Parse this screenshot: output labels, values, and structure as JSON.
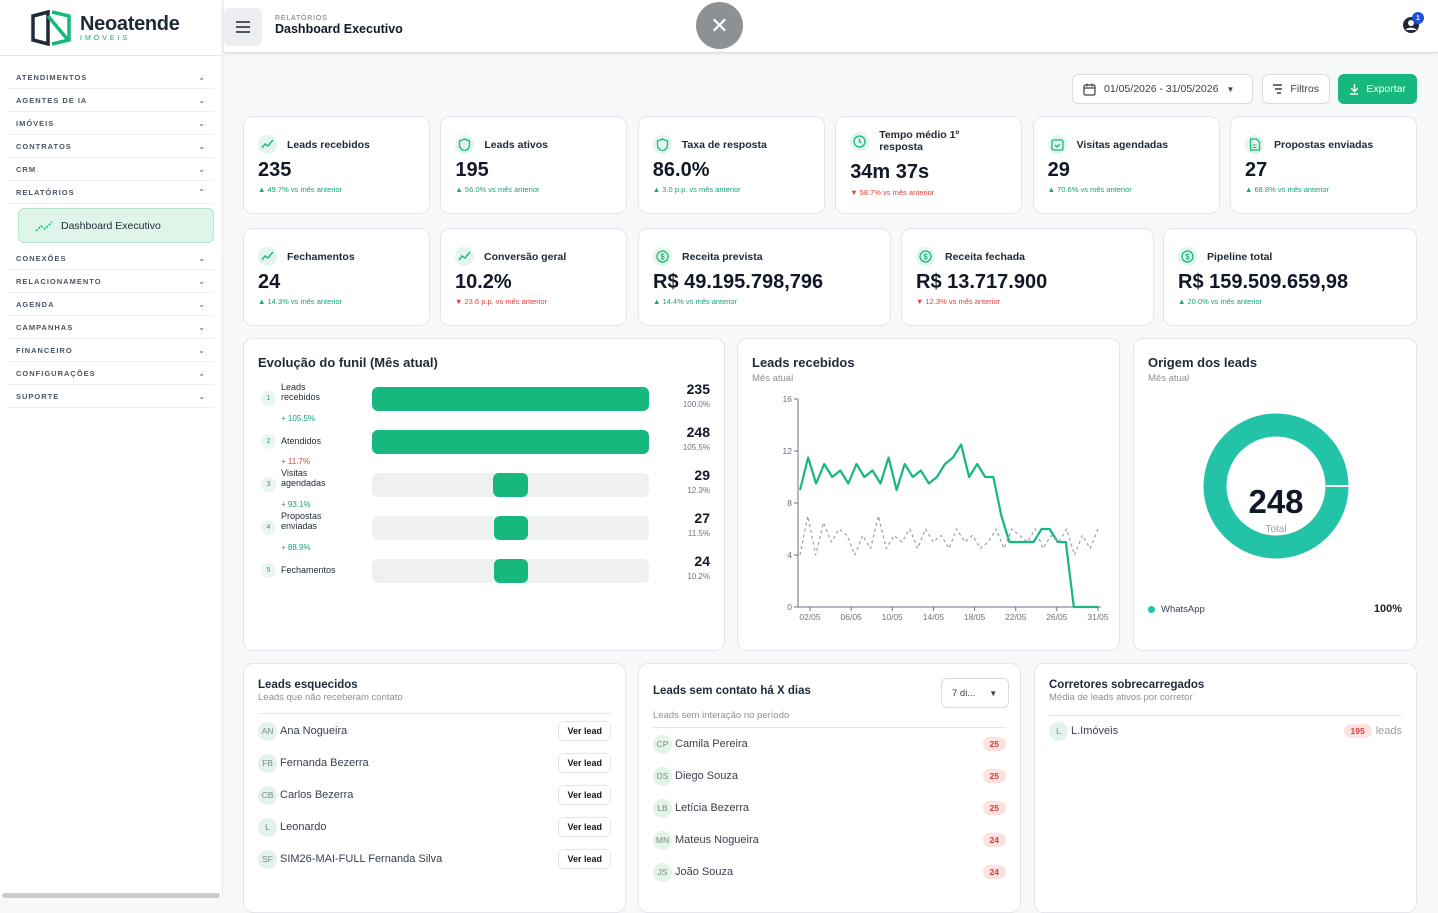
{
  "brand": {
    "name": "Neoatende",
    "sub": "IMÓVEIS"
  },
  "nav": [
    {
      "label": "ATENDIMENTOS"
    },
    {
      "label": "AGENTES DE IA"
    },
    {
      "label": "IMÓVEIS"
    },
    {
      "label": "CONTRATOS"
    },
    {
      "label": "CRM"
    },
    {
      "label": "RELATÓRIOS"
    }
  ],
  "nav_active": "Dashboard Executivo",
  "nav_rest": [
    {
      "label": "CONEXÕES"
    },
    {
      "label": "RELACIONAMENTO"
    },
    {
      "label": "AGENDA"
    },
    {
      "label": "CAMPANHAS"
    },
    {
      "label": "FINANCEIRO"
    },
    {
      "label": "CONFIGURAÇÕES"
    },
    {
      "label": "SUPORTE"
    }
  ],
  "header": {
    "kicker": "RELATÓRIOS",
    "title": "Dashboard Executivo",
    "notifications": "1"
  },
  "toolbar": {
    "date_range": "01/05/2026 - 31/05/2026",
    "filters": "Filtros",
    "export": "Exportar"
  },
  "kpis_row1": [
    {
      "title": "Leads recebidos",
      "value": "235",
      "delta": "▲ 49.7% vs mês anterior",
      "neg": false
    },
    {
      "title": "Leads ativos",
      "value": "195",
      "delta": "▲ 56.0% vs mês anterior",
      "neg": false
    },
    {
      "title": "Taxa de resposta",
      "value": "86.0%",
      "delta": "▲ 3.0 p.p. vs mês anterior",
      "neg": false
    },
    {
      "title": "Tempo médio 1º resposta",
      "value": "34m 37s",
      "delta": "▼ 58.7% vs mês anterior",
      "neg": true
    },
    {
      "title": "Visitas agendadas",
      "value": "29",
      "delta": "▲ 70.6% vs mês anterior",
      "neg": false
    },
    {
      "title": "Propostas enviadas",
      "value": "27",
      "delta": "▲ 68.8% vs mês anterior",
      "neg": false
    }
  ],
  "kpis_row2": [
    {
      "title": "Fechamentos",
      "value": "24",
      "delta": "▲ 14.3% vs mês anterior",
      "neg": false
    },
    {
      "title": "Conversão geral",
      "value": "10.2%",
      "delta": "▼ 23.6 p.p. vs mês anterior",
      "neg": true
    },
    {
      "title": "Receita prevista",
      "value": "R$ 49.195.798,796",
      "delta": "▲ 14.4% vs mês anterior",
      "neg": false
    },
    {
      "title": "Receita fechada",
      "value": "R$ 13.717.900",
      "delta": "▼ 12.3% vs mês anterior",
      "neg": true
    },
    {
      "title": "Pipeline total",
      "value": "R$ 159.509.659,98",
      "delta": "▲ 20.0% vs mês anterior",
      "neg": false
    }
  ],
  "funnel": {
    "title": "Evolução do funil (Mês atual)",
    "stages": [
      {
        "n": "1",
        "label": "Leads recebidos",
        "count": "235",
        "pct": "100.0%",
        "share": 1.0,
        "delta": "+ 105.5%",
        "neg": false
      },
      {
        "n": "2",
        "label": "Atendidos",
        "count": "248",
        "pct": "105.5%",
        "share": 1.0,
        "delta": "+ 11.7%",
        "neg": true
      },
      {
        "n": "3",
        "label": "Visitas agendadas",
        "count": "29",
        "pct": "12.3%",
        "share": 0.123,
        "delta": "+ 93.1%",
        "neg": false
      },
      {
        "n": "4",
        "label": "Propostas enviadas",
        "count": "27",
        "pct": "11.5%",
        "share": 0.115,
        "delta": "+ 88.9%",
        "neg": false
      },
      {
        "n": "5",
        "label": "Fechamentos",
        "count": "24",
        "pct": "10.2%",
        "share": 0.102
      }
    ]
  },
  "leads_chart": {
    "title": "Leads recebidos",
    "subtitle": "Mês atual"
  },
  "chart_data": {
    "type": "line",
    "ylim": [
      0,
      16
    ],
    "yticks": [
      "0",
      "4",
      "8",
      "12",
      "16"
    ],
    "xticks": [
      "02/05",
      "06/05",
      "10/05",
      "14/05",
      "18/05",
      "22/05",
      "26/05",
      "31/05"
    ],
    "series": [
      {
        "values": [
          9,
          11.5,
          9.5,
          11,
          10,
          10.5,
          9.5,
          11,
          10,
          10.5,
          9.5,
          11.5,
          9,
          11,
          10,
          10.5,
          9.5,
          10,
          11,
          11.5,
          12.5,
          10,
          11,
          10,
          10,
          7,
          5,
          5,
          5,
          5,
          6,
          6,
          5,
          5,
          0,
          0,
          0,
          0
        ],
        "color": "#16b87d"
      },
      {
        "values": [
          4,
          7,
          4,
          6.5,
          5,
          6,
          5.5,
          4,
          5.5,
          4.5,
          7,
          4.5,
          5.5,
          5,
          6,
          4.5,
          6,
          5,
          5.5,
          4.5,
          6,
          5,
          5.5,
          4.5,
          5,
          6,
          4.5,
          6,
          5.5,
          5,
          6,
          4.5,
          5.5,
          5,
          6,
          4,
          5.5,
          4.5,
          6
        ],
        "color": "#9aa0a6",
        "dashed": true
      }
    ]
  },
  "origin": {
    "title": "Origem dos leads",
    "subtitle": "Mês atual",
    "total": "248",
    "total_label": "Total",
    "legend": "WhatsApp",
    "legend_pct": "100%",
    "color": "#22c3a6"
  },
  "forgotten": {
    "title": "Leads esquecidos",
    "subtitle": "Leads que não receberam contato",
    "action": "Ver lead",
    "items": [
      {
        "ini": "AN",
        "name": "Ana Nogueira"
      },
      {
        "ini": "FB",
        "name": "Fernanda Bezerra"
      },
      {
        "ini": "CB",
        "name": "Carlos Bezerra"
      },
      {
        "ini": "L",
        "name": "Leonardo"
      },
      {
        "ini": "SF",
        "name": "SIM26-MAI-FULL Fernanda Silva"
      }
    ]
  },
  "no_contact": {
    "title": "Leads sem contato há X dias",
    "subtitle": "Leads sem interação no período",
    "select": "7 di...",
    "items": [
      {
        "ini": "CP",
        "name": "Camila Pereira",
        "n": "25"
      },
      {
        "ini": "DS",
        "name": "Diego Souza",
        "n": "25"
      },
      {
        "ini": "LB",
        "name": "Letícia Bezerra",
        "n": "25"
      },
      {
        "ini": "MN",
        "name": "Mateus Nogueira",
        "n": "24"
      },
      {
        "ini": "JS",
        "name": "João Souza",
        "n": "24"
      }
    ]
  },
  "overloaded": {
    "title": "Corretores sobrecarregados",
    "subtitle": "Média de leads ativos por corretor",
    "items": [
      {
        "ini": "L",
        "name": "L.Imóveis",
        "n": "195",
        "unit": "leads"
      }
    ]
  }
}
